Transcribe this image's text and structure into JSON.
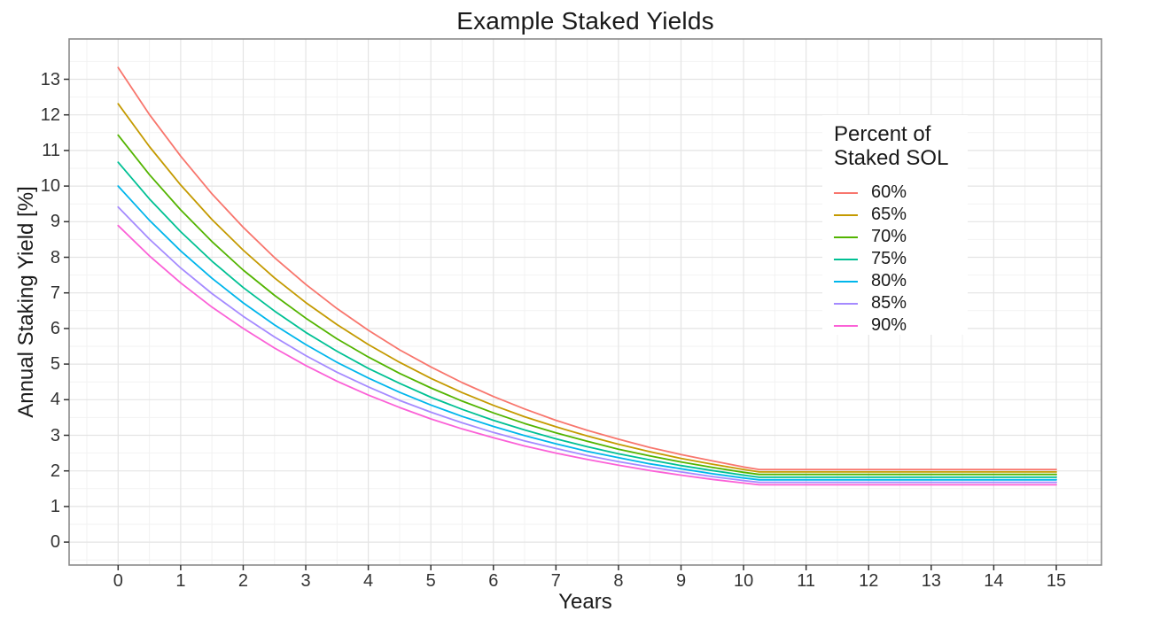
{
  "chart": {
    "title": "Example Staked Yields",
    "xlabel": "Years",
    "ylabel": "Annual Staking Yield [%]",
    "legend_title_lines": [
      "Percent of",
      "Staked SOL"
    ]
  },
  "chart_data": {
    "type": "line",
    "title": "Example Staked Yields",
    "xlabel": "Years",
    "ylabel": "Annual Staking Yield [%]",
    "legend_title": "Percent of Staked SOL",
    "legend_position": "inside-upper-right",
    "grid": "major+minor light grey on white, grey panel border",
    "xlim": [
      -0.78,
      15.72
    ],
    "ylim": [
      -0.64,
      14.13
    ],
    "x_ticks": [
      0,
      1,
      2,
      3,
      4,
      5,
      6,
      7,
      8,
      9,
      10,
      11,
      12,
      13,
      14,
      15
    ],
    "y_ticks": [
      0,
      1,
      2,
      3,
      4,
      5,
      6,
      7,
      8,
      9,
      10,
      11,
      12,
      13
    ],
    "x": [
      0,
      0.5,
      1,
      1.5,
      2,
      2.5,
      3,
      3.5,
      4,
      4.5,
      5,
      5.5,
      6,
      6.5,
      7,
      7.5,
      8,
      8.5,
      9,
      9.5,
      10,
      10.25,
      11,
      12,
      13,
      14,
      15
    ],
    "kink_year": 10.25,
    "series": [
      {
        "name": "60%",
        "color": "#F8766D",
        "values": [
          13.33,
          12.01,
          10.84,
          9.78,
          8.84,
          7.99,
          7.24,
          6.56,
          5.95,
          5.4,
          4.92,
          4.48,
          4.09,
          3.74,
          3.42,
          3.14,
          2.89,
          2.66,
          2.46,
          2.28,
          2.11,
          2.04,
          2.04,
          2.04,
          2.04,
          2.04,
          2.04
        ]
      },
      {
        "name": "65%",
        "color": "#C49A00",
        "values": [
          12.31,
          11.11,
          10.03,
          9.06,
          8.2,
          7.42,
          6.73,
          6.11,
          5.55,
          5.05,
          4.6,
          4.2,
          3.84,
          3.52,
          3.24,
          2.98,
          2.75,
          2.54,
          2.35,
          2.19,
          2.04,
          1.97,
          1.97,
          1.97,
          1.97,
          1.97,
          1.97
        ]
      },
      {
        "name": "70%",
        "color": "#53B400",
        "values": [
          11.43,
          10.32,
          9.33,
          8.44,
          7.64,
          6.93,
          6.29,
          5.71,
          5.2,
          4.74,
          4.33,
          3.96,
          3.63,
          3.33,
          3.07,
          2.83,
          2.61,
          2.42,
          2.25,
          2.1,
          1.96,
          1.9,
          1.9,
          1.9,
          1.9,
          1.9,
          1.9
        ]
      },
      {
        "name": "75%",
        "color": "#00C094",
        "values": [
          10.67,
          9.64,
          8.72,
          7.89,
          7.15,
          6.49,
          5.89,
          5.36,
          4.88,
          4.46,
          4.07,
          3.73,
          3.42,
          3.15,
          2.9,
          2.68,
          2.48,
          2.31,
          2.15,
          2.01,
          1.88,
          1.82,
          1.82,
          1.82,
          1.82,
          1.82,
          1.82
        ]
      },
      {
        "name": "80%",
        "color": "#00B6EB",
        "values": [
          10.0,
          9.04,
          8.18,
          7.41,
          6.72,
          6.1,
          5.55,
          5.05,
          4.61,
          4.21,
          3.85,
          3.53,
          3.25,
          2.99,
          2.76,
          2.55,
          2.37,
          2.2,
          2.06,
          1.92,
          1.8,
          1.75,
          1.75,
          1.75,
          1.75,
          1.75,
          1.75
        ]
      },
      {
        "name": "85%",
        "color": "#A58AFF",
        "values": [
          9.41,
          8.51,
          7.7,
          6.98,
          6.34,
          5.76,
          5.24,
          4.77,
          4.36,
          3.98,
          3.65,
          3.35,
          3.08,
          2.84,
          2.63,
          2.43,
          2.26,
          2.11,
          1.97,
          1.84,
          1.73,
          1.68,
          1.68,
          1.68,
          1.68,
          1.68,
          1.68
        ]
      },
      {
        "name": "90%",
        "color": "#FB61D7",
        "values": [
          8.89,
          8.04,
          7.28,
          6.6,
          6.0,
          5.45,
          4.96,
          4.52,
          4.13,
          3.78,
          3.46,
          3.18,
          2.93,
          2.7,
          2.5,
          2.32,
          2.16,
          2.01,
          1.88,
          1.76,
          1.66,
          1.61,
          1.61,
          1.61,
          1.61,
          1.61,
          1.61
        ]
      }
    ],
    "colors": {
      "grid_major": "#e4e4e4",
      "grid_minor": "#f2f2f2",
      "panel_border": "#8a8a8a",
      "tick_mark": "#333333",
      "text": "#1a1a1a"
    }
  }
}
